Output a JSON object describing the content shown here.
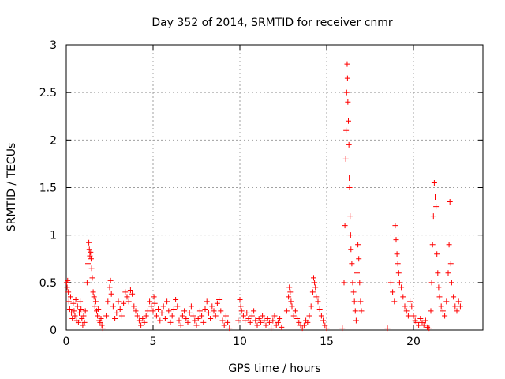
{
  "chart_data": {
    "type": "scatter",
    "title": "Day 352 of 2014, SRMTID for receiver cnmr",
    "xlabel": "GPS time / hours",
    "ylabel": "SRMTID / TECUs",
    "xlim": [
      0,
      24
    ],
    "ylim": [
      0,
      3
    ],
    "xticks": [
      0,
      5,
      10,
      15,
      20
    ],
    "yticks": [
      0,
      0.5,
      1,
      1.5,
      2,
      2.5,
      3
    ],
    "xtick_labels": [
      "0",
      "5",
      "10",
      "15",
      "20"
    ],
    "ytick_labels": [
      "0",
      "0.5",
      "1",
      "1.5",
      "2",
      "2.5",
      "3"
    ],
    "grid": true,
    "marker": "+",
    "series": [
      {
        "name": "SRMTID",
        "color": "#ff0000",
        "points": [
          [
            0.02,
            0.5
          ],
          [
            0.05,
            0.45
          ],
          [
            0.08,
            0.52
          ],
          [
            0.12,
            0.4
          ],
          [
            0.15,
            0.3
          ],
          [
            0.2,
            0.22
          ],
          [
            0.25,
            0.35
          ],
          [
            0.3,
            0.18
          ],
          [
            0.35,
            0.12
          ],
          [
            0.4,
            0.28
          ],
          [
            0.45,
            0.2
          ],
          [
            0.5,
            0.15
          ],
          [
            0.55,
            0.32
          ],
          [
            0.6,
            0.1
          ],
          [
            0.65,
            0.25
          ],
          [
            0.7,
            0.08
          ],
          [
            0.75,
            0.18
          ],
          [
            0.8,
            0.3
          ],
          [
            0.85,
            0.22
          ],
          [
            0.9,
            0.12
          ],
          [
            0.95,
            0.05
          ],
          [
            1.0,
            0.15
          ],
          [
            1.05,
            0.08
          ],
          [
            1.1,
            0.2
          ],
          [
            1.2,
            0.5
          ],
          [
            1.25,
            0.7
          ],
          [
            1.3,
            0.92
          ],
          [
            1.33,
            0.85
          ],
          [
            1.36,
            0.78
          ],
          [
            1.4,
            0.82
          ],
          [
            1.43,
            0.75
          ],
          [
            1.46,
            0.65
          ],
          [
            1.5,
            0.55
          ],
          [
            1.55,
            0.4
          ],
          [
            1.6,
            0.35
          ],
          [
            1.65,
            0.25
          ],
          [
            1.7,
            0.3
          ],
          [
            1.75,
            0.2
          ],
          [
            1.8,
            0.15
          ],
          [
            1.85,
            0.22
          ],
          [
            1.9,
            0.1
          ],
          [
            1.95,
            0.08
          ],
          [
            2.0,
            0.12
          ],
          [
            2.05,
            0.05
          ],
          [
            2.1,
            0.02
          ],
          [
            2.3,
            0.15
          ],
          [
            2.4,
            0.3
          ],
          [
            2.5,
            0.45
          ],
          [
            2.55,
            0.52
          ],
          [
            2.6,
            0.38
          ],
          [
            2.7,
            0.25
          ],
          [
            2.8,
            0.12
          ],
          [
            2.9,
            0.18
          ],
          [
            3.0,
            0.3
          ],
          [
            3.1,
            0.22
          ],
          [
            3.2,
            0.15
          ],
          [
            3.3,
            0.28
          ],
          [
            3.4,
            0.4
          ],
          [
            3.5,
            0.35
          ],
          [
            3.6,
            0.3
          ],
          [
            3.7,
            0.42
          ],
          [
            3.8,
            0.38
          ],
          [
            3.9,
            0.25
          ],
          [
            4.0,
            0.2
          ],
          [
            4.1,
            0.15
          ],
          [
            4.2,
            0.1
          ],
          [
            4.3,
            0.05
          ],
          [
            4.4,
            0.12
          ],
          [
            4.5,
            0.08
          ],
          [
            4.6,
            0.15
          ],
          [
            4.7,
            0.2
          ],
          [
            4.8,
            0.3
          ],
          [
            4.9,
            0.25
          ],
          [
            5.0,
            0.2
          ],
          [
            5.05,
            0.35
          ],
          [
            5.1,
            0.28
          ],
          [
            5.2,
            0.15
          ],
          [
            5.3,
            0.22
          ],
          [
            5.4,
            0.1
          ],
          [
            5.5,
            0.18
          ],
          [
            5.6,
            0.25
          ],
          [
            5.7,
            0.12
          ],
          [
            5.8,
            0.3
          ],
          [
            5.9,
            0.2
          ],
          [
            6.0,
            0.08
          ],
          [
            6.1,
            0.15
          ],
          [
            6.2,
            0.22
          ],
          [
            6.3,
            0.32
          ],
          [
            6.4,
            0.25
          ],
          [
            6.5,
            0.1
          ],
          [
            6.6,
            0.05
          ],
          [
            6.7,
            0.15
          ],
          [
            6.8,
            0.2
          ],
          [
            6.9,
            0.12
          ],
          [
            7.0,
            0.08
          ],
          [
            7.1,
            0.18
          ],
          [
            7.2,
            0.25
          ],
          [
            7.3,
            0.15
          ],
          [
            7.4,
            0.1
          ],
          [
            7.5,
            0.05
          ],
          [
            7.6,
            0.12
          ],
          [
            7.7,
            0.2
          ],
          [
            7.8,
            0.15
          ],
          [
            7.9,
            0.08
          ],
          [
            8.0,
            0.22
          ],
          [
            8.1,
            0.3
          ],
          [
            8.2,
            0.18
          ],
          [
            8.3,
            0.12
          ],
          [
            8.4,
            0.25
          ],
          [
            8.5,
            0.2
          ],
          [
            8.6,
            0.15
          ],
          [
            8.7,
            0.28
          ],
          [
            8.8,
            0.32
          ],
          [
            8.9,
            0.2
          ],
          [
            9.0,
            0.1
          ],
          [
            9.1,
            0.05
          ],
          [
            9.2,
            0.15
          ],
          [
            9.3,
            0.08
          ],
          [
            9.4,
            0.02
          ],
          [
            9.9,
            0.1
          ],
          [
            10.0,
            0.32
          ],
          [
            10.05,
            0.25
          ],
          [
            10.1,
            0.2
          ],
          [
            10.2,
            0.15
          ],
          [
            10.3,
            0.1
          ],
          [
            10.4,
            0.18
          ],
          [
            10.5,
            0.12
          ],
          [
            10.6,
            0.08
          ],
          [
            10.7,
            0.15
          ],
          [
            10.8,
            0.2
          ],
          [
            10.9,
            0.1
          ],
          [
            11.0,
            0.05
          ],
          [
            11.1,
            0.12
          ],
          [
            11.2,
            0.08
          ],
          [
            11.3,
            0.15
          ],
          [
            11.4,
            0.1
          ],
          [
            11.5,
            0.05
          ],
          [
            11.6,
            0.12
          ],
          [
            11.7,
            0.08
          ],
          [
            11.8,
            0.02
          ],
          [
            11.9,
            0.1
          ],
          [
            12.0,
            0.15
          ],
          [
            12.1,
            0.05
          ],
          [
            12.2,
            0.08
          ],
          [
            12.3,
            0.12
          ],
          [
            12.4,
            0.03
          ],
          [
            12.7,
            0.2
          ],
          [
            12.8,
            0.35
          ],
          [
            12.85,
            0.45
          ],
          [
            12.9,
            0.4
          ],
          [
            12.95,
            0.3
          ],
          [
            13.0,
            0.25
          ],
          [
            13.1,
            0.15
          ],
          [
            13.2,
            0.2
          ],
          [
            13.3,
            0.12
          ],
          [
            13.4,
            0.08
          ],
          [
            13.5,
            0.05
          ],
          [
            13.6,
            0.02
          ],
          [
            13.7,
            0.05
          ],
          [
            13.8,
            0.1
          ],
          [
            13.9,
            0.08
          ],
          [
            14.0,
            0.15
          ],
          [
            14.1,
            0.25
          ],
          [
            14.2,
            0.4
          ],
          [
            14.25,
            0.55
          ],
          [
            14.3,
            0.5
          ],
          [
            14.35,
            0.45
          ],
          [
            14.4,
            0.35
          ],
          [
            14.5,
            0.3
          ],
          [
            14.6,
            0.22
          ],
          [
            14.7,
            0.15
          ],
          [
            14.8,
            0.1
          ],
          [
            14.9,
            0.05
          ],
          [
            15.0,
            0.02
          ],
          [
            15.9,
            0.02
          ],
          [
            16.0,
            0.5
          ],
          [
            16.05,
            1.1
          ],
          [
            16.1,
            1.8
          ],
          [
            16.12,
            2.1
          ],
          [
            16.15,
            2.5
          ],
          [
            16.18,
            2.8
          ],
          [
            16.2,
            2.65
          ],
          [
            16.22,
            2.4
          ],
          [
            16.25,
            2.2
          ],
          [
            16.28,
            1.95
          ],
          [
            16.3,
            1.6
          ],
          [
            16.32,
            1.5
          ],
          [
            16.35,
            1.2
          ],
          [
            16.38,
            1.0
          ],
          [
            16.4,
            0.85
          ],
          [
            16.45,
            0.7
          ],
          [
            16.5,
            0.5
          ],
          [
            16.55,
            0.4
          ],
          [
            16.6,
            0.3
          ],
          [
            16.65,
            0.2
          ],
          [
            16.7,
            0.1
          ],
          [
            16.75,
            0.6
          ],
          [
            16.8,
            0.9
          ],
          [
            16.85,
            0.75
          ],
          [
            16.9,
            0.5
          ],
          [
            16.95,
            0.3
          ],
          [
            17.0,
            0.2
          ],
          [
            18.5,
            0.02
          ],
          [
            18.7,
            0.5
          ],
          [
            18.8,
            0.4
          ],
          [
            18.9,
            0.3
          ],
          [
            18.95,
            1.1
          ],
          [
            19.0,
            0.95
          ],
          [
            19.05,
            0.8
          ],
          [
            19.1,
            0.7
          ],
          [
            19.15,
            0.6
          ],
          [
            19.2,
            0.5
          ],
          [
            19.3,
            0.45
          ],
          [
            19.4,
            0.35
          ],
          [
            19.5,
            0.25
          ],
          [
            19.6,
            0.2
          ],
          [
            19.7,
            0.15
          ],
          [
            19.8,
            0.3
          ],
          [
            19.9,
            0.25
          ],
          [
            20.0,
            0.15
          ],
          [
            20.1,
            0.1
          ],
          [
            20.2,
            0.08
          ],
          [
            20.3,
            0.05
          ],
          [
            20.4,
            0.12
          ],
          [
            20.5,
            0.08
          ],
          [
            20.6,
            0.05
          ],
          [
            20.7,
            0.1
          ],
          [
            20.8,
            0.03
          ],
          [
            20.9,
            0.02
          ],
          [
            21.0,
            0.2
          ],
          [
            21.05,
            0.5
          ],
          [
            21.1,
            0.9
          ],
          [
            21.15,
            1.2
          ],
          [
            21.2,
            1.55
          ],
          [
            21.25,
            1.4
          ],
          [
            21.3,
            1.3
          ],
          [
            21.35,
            0.8
          ],
          [
            21.4,
            0.6
          ],
          [
            21.45,
            0.45
          ],
          [
            21.5,
            0.35
          ],
          [
            21.6,
            0.25
          ],
          [
            21.7,
            0.2
          ],
          [
            21.8,
            0.15
          ],
          [
            21.9,
            0.3
          ],
          [
            22.0,
            0.6
          ],
          [
            22.05,
            0.9
          ],
          [
            22.1,
            1.35
          ],
          [
            22.15,
            0.7
          ],
          [
            22.2,
            0.5
          ],
          [
            22.3,
            0.35
          ],
          [
            22.4,
            0.25
          ],
          [
            22.5,
            0.2
          ],
          [
            22.6,
            0.3
          ],
          [
            22.7,
            0.25
          ]
        ]
      }
    ]
  }
}
